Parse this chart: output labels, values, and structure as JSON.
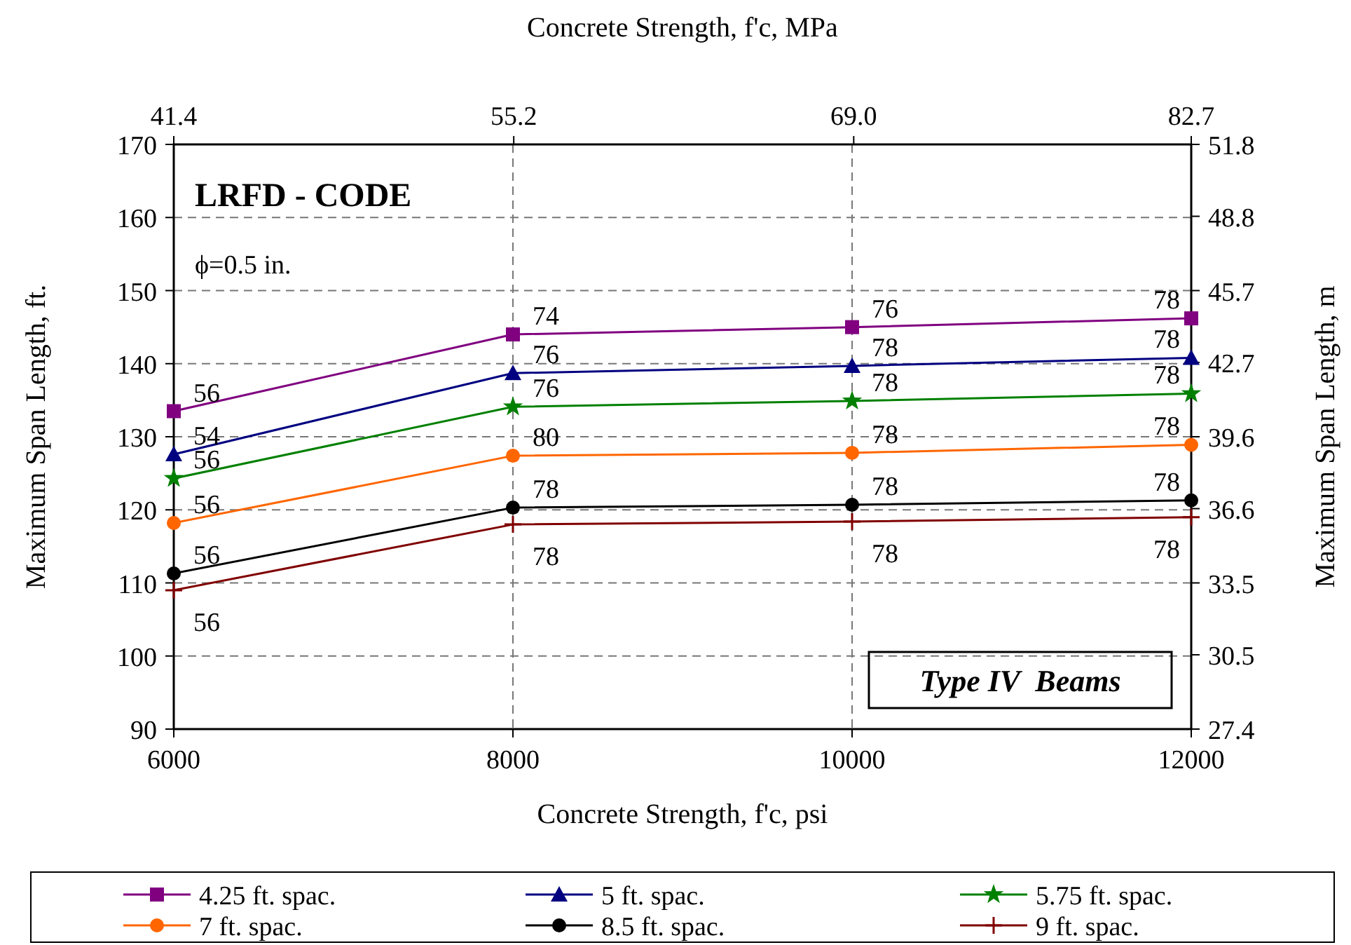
{
  "chart_data": {
    "type": "line",
    "xlabel": "Concrete Strength, f'c, psi",
    "x2label": "Concrete Strength, f'c, MPa",
    "ylabel": "Maximum Span Length, ft.",
    "y2label": "Maximum Span Length, m",
    "x": [
      6000,
      8000,
      10000,
      12000
    ],
    "xlim": [
      6000,
      12000
    ],
    "xticks": [
      6000,
      8000,
      10000,
      12000
    ],
    "x2lim": [
      41.4,
      82.7
    ],
    "x2ticks": [
      41.4,
      55.2,
      {
        "value": 69,
        "label": "69.0"
      },
      82.7
    ],
    "ylim": [
      90,
      170
    ],
    "yticks": [
      90,
      100,
      110,
      120,
      130,
      140,
      150,
      160,
      170
    ],
    "y2lim": [
      27.4,
      51.8
    ],
    "y2ticks": [
      27.4,
      30.5,
      33.5,
      36.6,
      39.6,
      42.7,
      45.7,
      48.8,
      51.8
    ],
    "grid": true,
    "legend": "bottom",
    "line_style": "solid",
    "series": [
      {
        "name": "4.25 ft. spac.",
        "color": "#800080",
        "marker": "square",
        "values": [
          133.5,
          144,
          145,
          146.2
        ]
      },
      {
        "name": "5 ft. spac.",
        "color": "#000080",
        "marker": "triangle",
        "values": [
          127.6,
          138.7,
          139.7,
          140.8
        ]
      },
      {
        "name": "5.75 ft. spac.",
        "color": "#008000",
        "marker": "star",
        "values": [
          124.3,
          134.1,
          134.9,
          135.9
        ]
      },
      {
        "name": "7 ft. spac.",
        "color": "#ff6600",
        "marker": "circle",
        "values": [
          118.2,
          127.4,
          127.8,
          128.9
        ]
      },
      {
        "name": "8.5 ft. spac.",
        "color": "#000000",
        "marker": "circle",
        "values": [
          111.3,
          120.3,
          120.7,
          121.3
        ]
      },
      {
        "name": "9 ft. spac.",
        "color": "#800000",
        "marker": "cross",
        "values": [
          109,
          118,
          118.4,
          119
        ]
      }
    ],
    "annotations": [
      "LRFD - CODE",
      "ϕ=0.5 in.",
      "Type IV  Beams",
      {
        "text": "56",
        "x": 6000,
        "y": 133.5
      },
      {
        "text": "74",
        "x": 8000,
        "y": 144
      },
      {
        "text": "76",
        "x": 10000,
        "y": 145
      },
      {
        "text": "78",
        "x": 12000,
        "y": 146.2
      },
      {
        "text": "54",
        "x": 6000,
        "y": 127.6
      },
      {
        "text": "76",
        "x": 8000,
        "y": 138.7
      },
      {
        "text": "78",
        "x": 10000,
        "y": 139.7
      },
      {
        "text": "78",
        "x": 12000,
        "y": 140.8
      },
      {
        "text": "56",
        "x": 6000,
        "y": 124.3
      },
      {
        "text": "76",
        "x": 8000,
        "y": 134.1
      },
      {
        "text": "78",
        "x": 10000,
        "y": 134.9
      },
      {
        "text": "78",
        "x": 12000,
        "y": 135.9
      },
      {
        "text": "56",
        "x": 6000,
        "y": 118.2
      },
      {
        "text": "80",
        "x": 8000,
        "y": 127.4
      },
      {
        "text": "78",
        "x": 10000,
        "y": 127.8
      },
      {
        "text": "78",
        "x": 12000,
        "y": 128.9
      },
      {
        "text": "56",
        "x": 6000,
        "y": 111.3
      },
      {
        "text": "78",
        "x": 8000,
        "y": 120.3
      },
      {
        "text": "78",
        "x": 10000,
        "y": 120.7
      },
      {
        "text": "78",
        "x": 12000,
        "y": 121.3
      },
      {
        "text": "56",
        "x": 6000,
        "y": 109
      },
      {
        "text": "78",
        "x": 8000,
        "y": 118
      },
      {
        "text": "78",
        "x": 10000,
        "y": 118.4
      },
      {
        "text": "78",
        "x": 12000,
        "y": 119
      }
    ]
  }
}
